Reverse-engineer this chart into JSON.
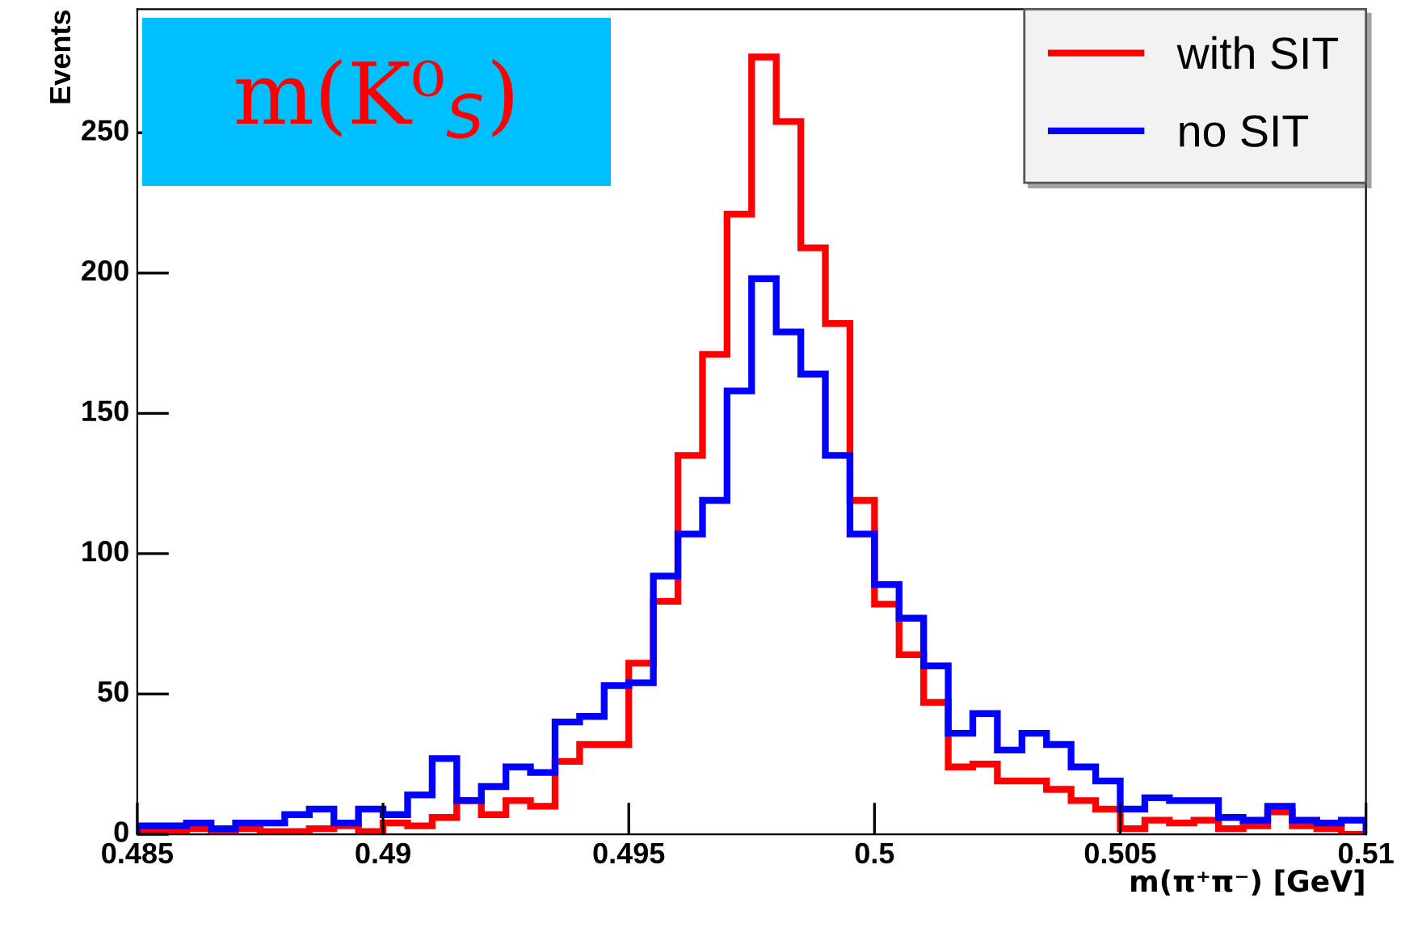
{
  "chart_data": {
    "type": "histogram",
    "title": "m(K⁰$_{S}$)",
    "xlabel": "m(π⁺π⁻) [GeV]",
    "ylabel": "Events",
    "bins": [
      0.485,
      0.4855,
      0.486,
      0.4865,
      0.487,
      0.4875,
      0.488,
      0.4885,
      0.489,
      0.4895,
      0.49,
      0.4905,
      0.491,
      0.4915,
      0.492,
      0.4925,
      0.493,
      0.4935,
      0.494,
      0.4945,
      0.495,
      0.4955,
      0.496,
      0.4965,
      0.497,
      0.4975,
      0.498,
      0.4985,
      0.499,
      0.4995,
      0.5,
      0.5005,
      0.501,
      0.5015,
      0.502,
      0.5025,
      0.503,
      0.5035,
      0.504,
      0.5045,
      0.505,
      0.5055,
      0.506,
      0.5065,
      0.507,
      0.5075,
      0.508,
      0.5085,
      0.509,
      0.5095,
      0.51
    ],
    "series": [
      {
        "name": "with SIT",
        "color": "#ff0000",
        "values": [
          1,
          1,
          2,
          0,
          2,
          1,
          1,
          2,
          3,
          1,
          4,
          3,
          6,
          12,
          7,
          12,
          10,
          26,
          32,
          32,
          61,
          83,
          135,
          171,
          221,
          277,
          254,
          209,
          182,
          119,
          82,
          64,
          47,
          24,
          25,
          19,
          19,
          16,
          12,
          9,
          2,
          5,
          4,
          5,
          2,
          3,
          8,
          3,
          2,
          0
        ]
      },
      {
        "name": "no SIT",
        "color": "#0000ff",
        "values": [
          3,
          3,
          4,
          2,
          4,
          4,
          7,
          9,
          4,
          9,
          7,
          14,
          27,
          12,
          17,
          24,
          22,
          40,
          42,
          53,
          54,
          92,
          107,
          119,
          158,
          198,
          179,
          164,
          135,
          107,
          89,
          77,
          60,
          36,
          43,
          30,
          36,
          32,
          24,
          19,
          9,
          13,
          12,
          12,
          6,
          5,
          10,
          5,
          4,
          5
        ]
      }
    ],
    "xlim": [
      0.485,
      0.51
    ],
    "xticks": [
      0.485,
      0.49,
      0.495,
      0.5,
      0.505,
      0.51
    ],
    "ylim": [
      0,
      294
    ],
    "yticks": [
      0,
      50,
      100,
      150,
      200,
      250
    ],
    "grid": false,
    "legend": "top right"
  }
}
